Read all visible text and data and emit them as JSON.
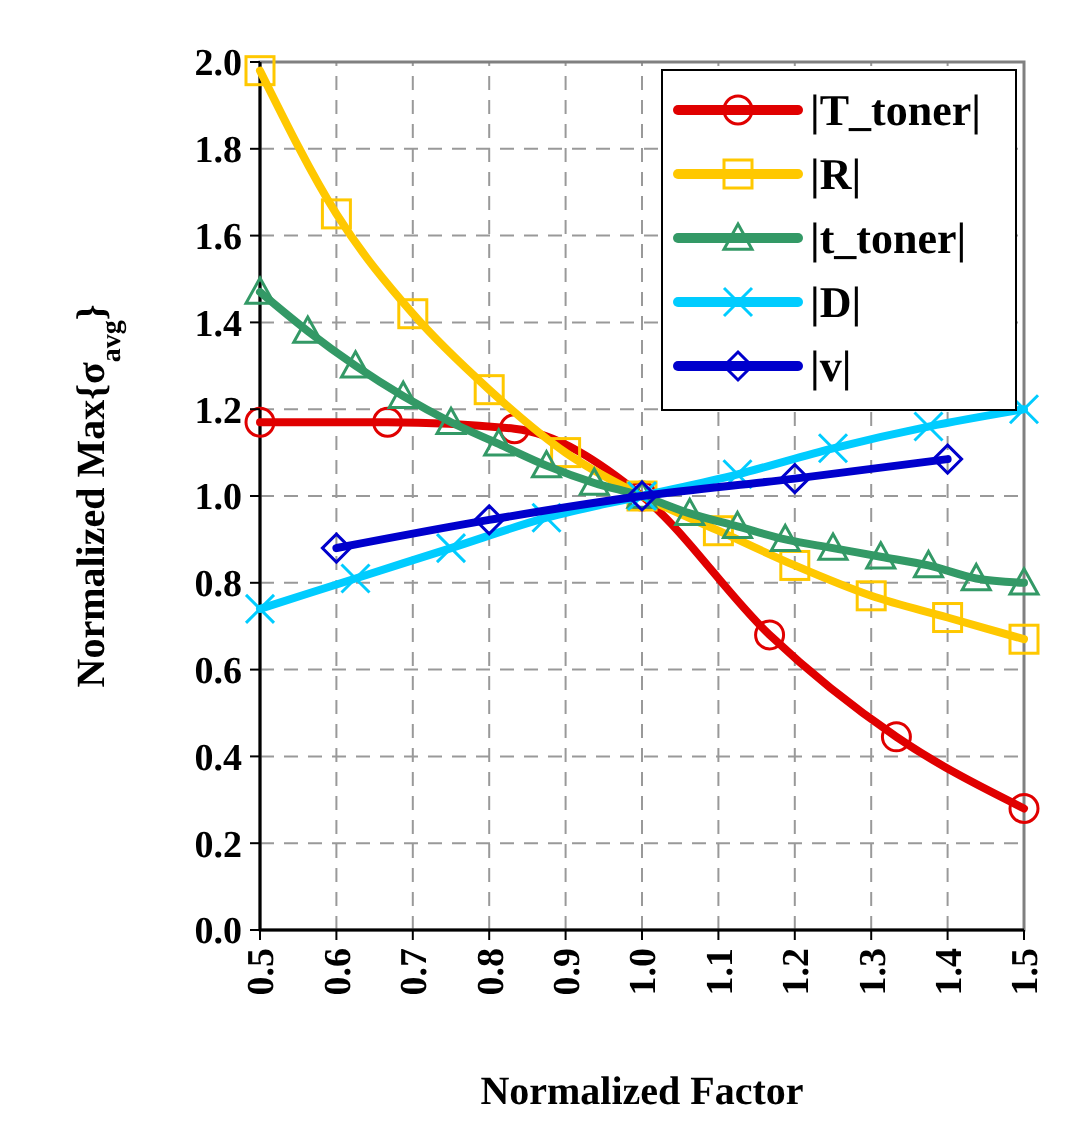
{
  "chart_data": {
    "type": "line",
    "xlabel": "Normalized Factor",
    "ylabel": "Normalized Max{σ$_{avg}$}",
    "xlim": [
      0.5,
      1.5
    ],
    "xticks": [
      0.5,
      0.6,
      0.7,
      0.8,
      0.9,
      {
        "value": 1,
        "label": "1.0"
      },
      1.1,
      1.2,
      1.3,
      1.4,
      1.5
    ],
    "ylim": [
      0,
      2
    ],
    "yticks": [
      {
        "value": 0,
        "label": "0.0"
      },
      0.2,
      0.4,
      0.6,
      0.8,
      {
        "value": 1,
        "label": "1.0"
      },
      1.2,
      1.4,
      1.6,
      1.8,
      {
        "value": 2,
        "label": "2.0"
      }
    ],
    "grid": true,
    "legend": "top right",
    "line_style": "solid",
    "series": [
      {
        "name": "|T_toner|",
        "color": "#e00000",
        "marker": "circle",
        "x": [
          0.5,
          0.667,
          0.833,
          1.0,
          1.167,
          1.333,
          1.5
        ],
        "values": [
          1.17,
          1.17,
          1.155,
          1.0,
          0.68,
          0.445,
          0.28
        ]
      },
      {
        "name": "|R|",
        "color": "#ffc800",
        "marker": "square",
        "x": [
          0.5,
          0.6,
          0.7,
          0.8,
          0.9,
          1.0,
          1.1,
          1.2,
          1.3,
          1.4,
          1.5
        ],
        "values": [
          1.98,
          1.65,
          1.42,
          1.245,
          1.1,
          1.0,
          0.92,
          0.84,
          0.77,
          0.72,
          0.67
        ]
      },
      {
        "name": "|t_toner|",
        "color": "#339966",
        "marker": "triangle",
        "x": [
          0.5,
          0.5625,
          0.625,
          0.6875,
          0.75,
          0.8125,
          0.875,
          0.9375,
          1.0,
          1.0625,
          1.125,
          1.1875,
          1.25,
          1.3125,
          1.375,
          1.4375,
          1.5
        ],
        "values": [
          1.47,
          1.38,
          1.3,
          1.23,
          1.17,
          1.12,
          1.07,
          1.03,
          1.0,
          0.96,
          0.93,
          0.9,
          0.88,
          0.86,
          0.84,
          0.81,
          0.8
        ]
      },
      {
        "name": "|D|",
        "color": "#00ccff",
        "marker": "cross",
        "x": [
          0.5,
          0.625,
          0.75,
          0.875,
          1.0,
          1.125,
          1.25,
          1.375,
          1.5
        ],
        "values": [
          0.74,
          0.81,
          0.88,
          0.95,
          1.0,
          1.05,
          1.11,
          1.16,
          1.2
        ]
      },
      {
        "name": "|v|",
        "color": "#0000cc",
        "marker": "diamond",
        "x": [
          0.6,
          0.8,
          1.0,
          1.2,
          1.4
        ],
        "values": [
          0.88,
          0.945,
          1.0,
          1.04,
          1.085
        ]
      }
    ]
  }
}
